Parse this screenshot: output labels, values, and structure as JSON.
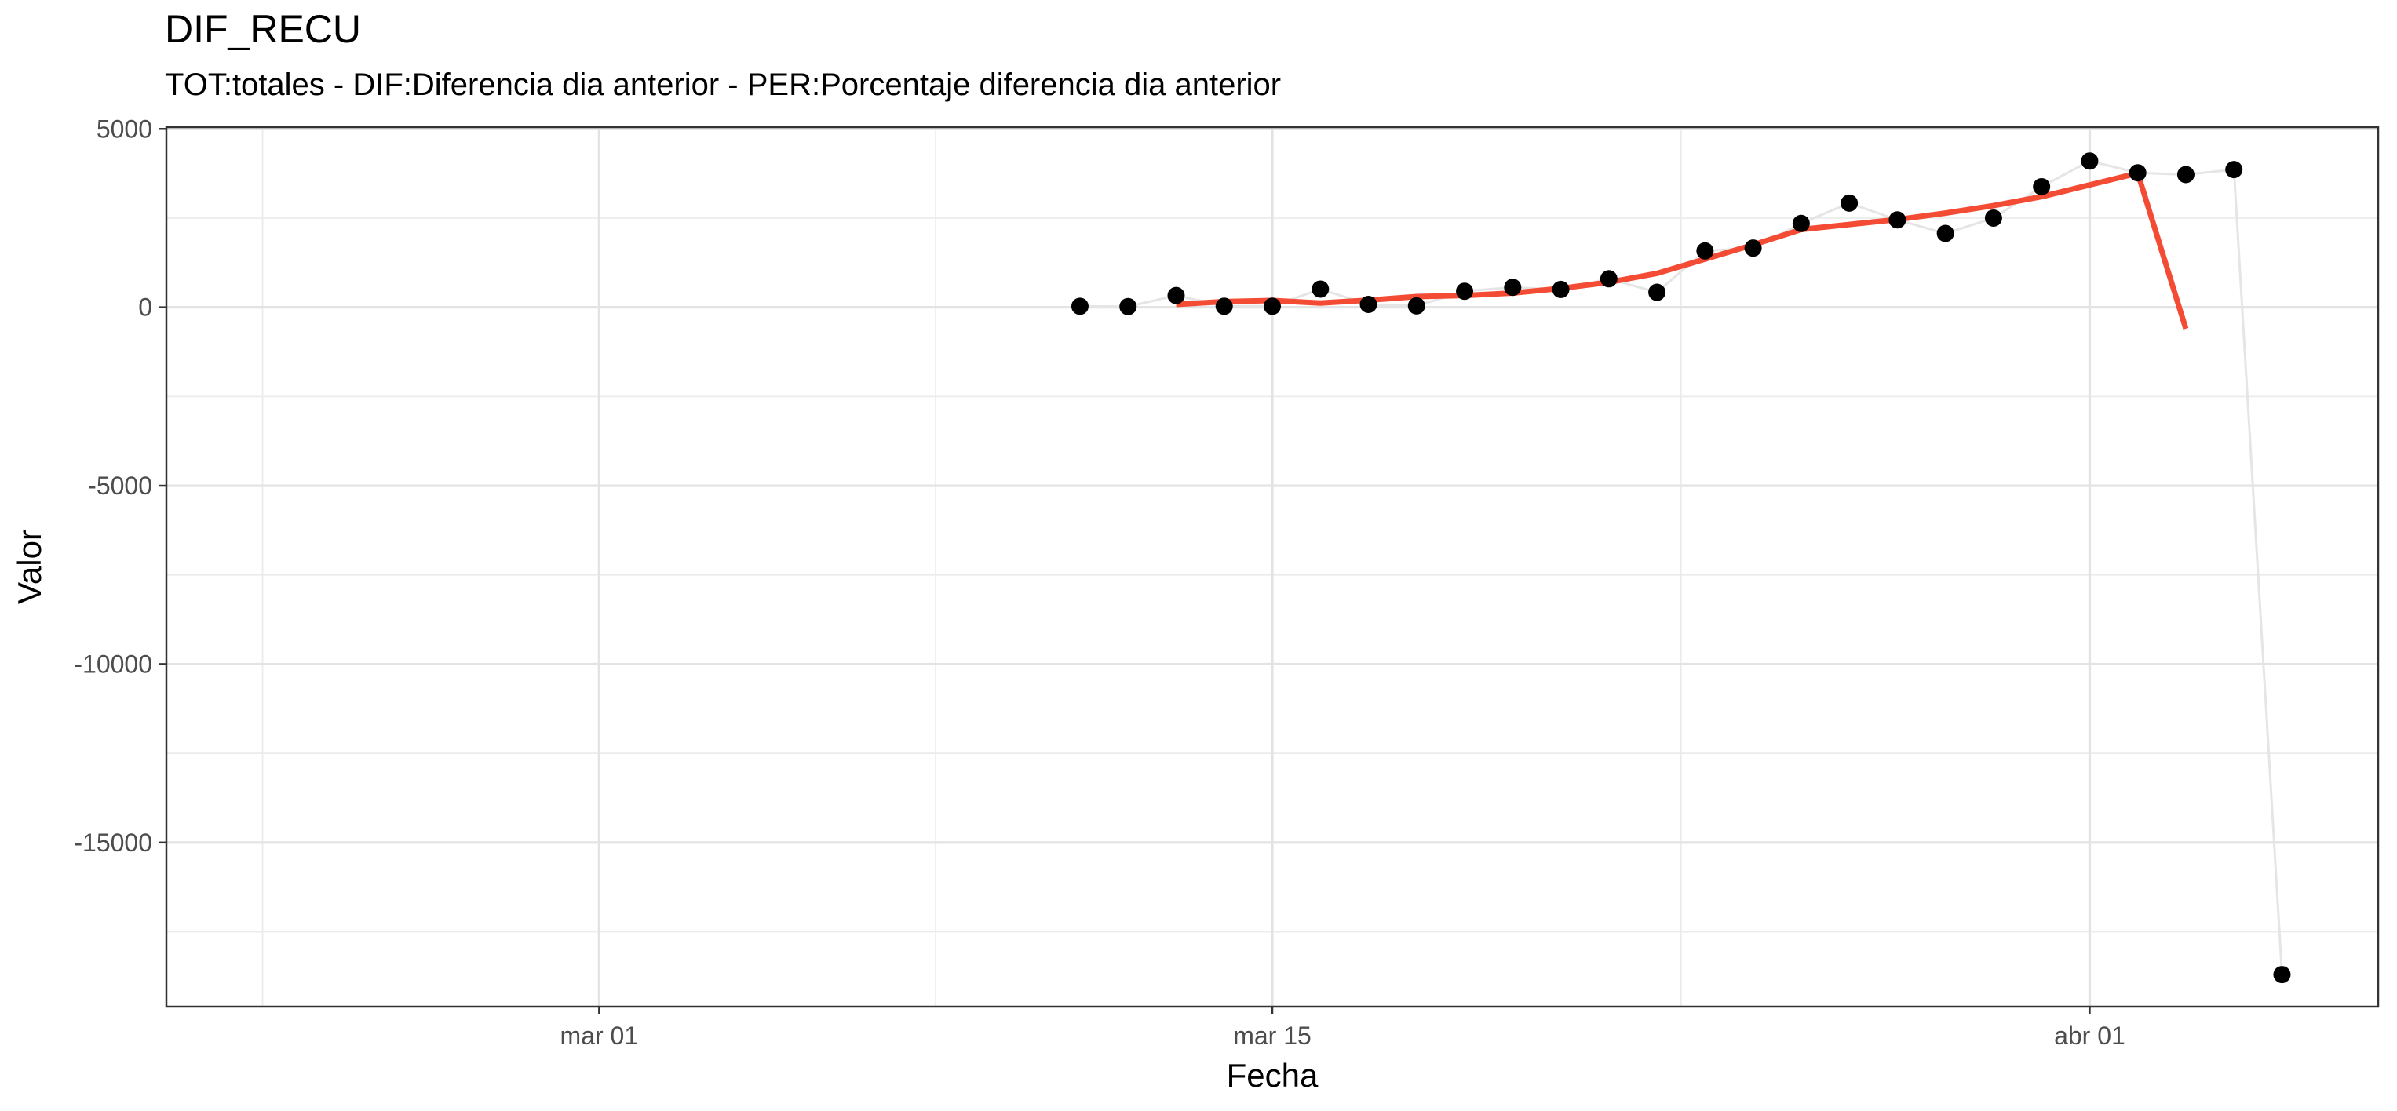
{
  "chart_data": {
    "type": "line",
    "title": "DIF_RECU",
    "subtitle": "TOT:totales - DIF:Diferencia dia anterior - PER:Porcentaje diferencia dia anterior",
    "xlabel": "Fecha",
    "ylabel": "Valor",
    "xlim": [
      "2020-02-21",
      "2020-04-07"
    ],
    "ylim": [
      -19600,
      5050
    ],
    "x_ticks": [
      {
        "date": "2020-03-01",
        "label": "mar 01"
      },
      {
        "date": "2020-03-15",
        "label": "mar 15"
      },
      {
        "date": "2020-04-01",
        "label": "abr 01"
      }
    ],
    "y_ticks": [
      {
        "value": 5000,
        "label": "5000"
      },
      {
        "value": 0,
        "label": "0"
      },
      {
        "value": -5000,
        "label": "-5000"
      },
      {
        "value": -10000,
        "label": "-10000"
      },
      {
        "value": -15000,
        "label": "-15000"
      }
    ],
    "grid": true,
    "series": [
      {
        "kind": "points",
        "color": "#000000",
        "connector_color": "#e5e5e5",
        "x": [
          "2020-03-11",
          "2020-03-12",
          "2020-03-13",
          "2020-03-14",
          "2020-03-15",
          "2020-03-16",
          "2020-03-17",
          "2020-03-18",
          "2020-03-19",
          "2020-03-20",
          "2020-03-21",
          "2020-03-22",
          "2020-03-23",
          "2020-03-24",
          "2020-03-25",
          "2020-03-26",
          "2020-03-27",
          "2020-03-28",
          "2020-03-29",
          "2020-03-30",
          "2020-03-31",
          "2020-04-01",
          "2020-04-02",
          "2020-04-03",
          "2020-04-04",
          "2020-04-05"
        ],
        "values": [
          28,
          20,
          330,
          30,
          30,
          510,
          80,
          40,
          450,
          560,
          500,
          800,
          420,
          1580,
          1660,
          2350,
          2920,
          2450,
          2070,
          2500,
          3380,
          4100,
          3770,
          3720,
          3860,
          -18700
        ]
      },
      {
        "kind": "line",
        "color": "#f44b35",
        "x": [
          "2020-03-13",
          "2020-03-14",
          "2020-03-15",
          "2020-03-16",
          "2020-03-17",
          "2020-03-18",
          "2020-03-19",
          "2020-03-20",
          "2020-03-21",
          "2020-03-22",
          "2020-03-23",
          "2020-03-24",
          "2020-03-25",
          "2020-03-26",
          "2020-03-27",
          "2020-03-28",
          "2020-03-29",
          "2020-03-30",
          "2020-03-31",
          "2020-04-01",
          "2020-04-02",
          "2020-04-03"
        ],
        "values": [
          80,
          160,
          190,
          120,
          200,
          300,
          330,
          400,
          530,
          700,
          950,
          1350,
          1750,
          2180,
          2320,
          2460,
          2640,
          2850,
          3100,
          3430,
          3760,
          -600
        ]
      }
    ]
  }
}
